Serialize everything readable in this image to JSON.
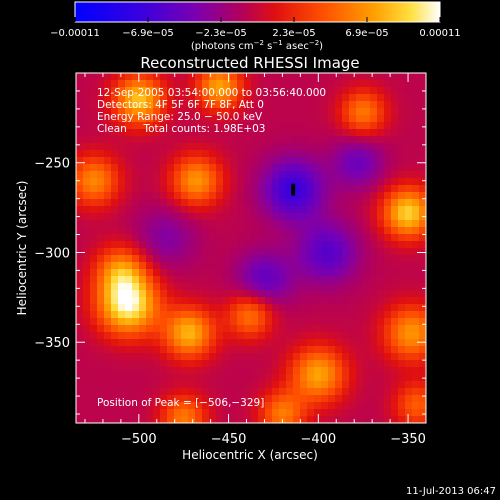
{
  "chart_data": {
    "type": "heatmap",
    "title": "Reconstructed RHESSI Image",
    "xlabel": "Heliocentric X (arcsec)",
    "ylabel": "Heliocentric Y (arcsec)",
    "xlim": [
      -535,
      -340
    ],
    "ylim": [
      -395,
      -200
    ],
    "x_ticks": [
      -500,
      -450,
      -400,
      -350
    ],
    "y_ticks": [
      -250,
      -300,
      -350
    ],
    "x_tick_labels": [
      "−500",
      "−450",
      "−400",
      "−350"
    ],
    "y_tick_labels": [
      "−250",
      "−300",
      "−350"
    ],
    "colorbar": {
      "min": -0.00011,
      "max": 0.00011,
      "tick_labels": [
        "−0.00011",
        "−6.9e−05",
        "−2.3e−05",
        "2.3e−05",
        "6.9e−05",
        "0.00011"
      ],
      "units_prefix": "(photons cm",
      "units_sup1": "−2",
      "units_mid1": " s",
      "units_sup2": "−1",
      "units_mid2": " asec",
      "units_sup3": "−2",
      "units_suffix": ")"
    },
    "annotations": [
      "12-Sep-2005 03:54:00.000 to 03:56:40.000",
      "Detectors: 4F 5F 6F 7F 8F, Att 0",
      "Energy Range: 25.0 − 50.0 keV",
      "Clean     Total counts: 1.98E+03"
    ],
    "peak_label": "Position of Peak = [−506,−329]",
    "peak": [
      -506,
      -329
    ],
    "negative_min_marker": [
      -414,
      -265
    ],
    "footer_date": "11-Jul-2013 06:47",
    "image_sources": [
      {
        "x": -506,
        "y": -329,
        "amp": 1.0,
        "sigma": 12
      },
      {
        "x": -510,
        "y": -310,
        "amp": 0.55,
        "sigma": 10
      },
      {
        "x": -500,
        "y": -215,
        "amp": 0.8,
        "sigma": 10
      },
      {
        "x": -455,
        "y": -208,
        "amp": 0.7,
        "sigma": 9
      },
      {
        "x": -525,
        "y": -260,
        "amp": 0.6,
        "sigma": 10
      },
      {
        "x": -468,
        "y": -260,
        "amp": 0.65,
        "sigma": 10
      },
      {
        "x": -350,
        "y": -278,
        "amp": 0.85,
        "sigma": 10
      },
      {
        "x": -375,
        "y": -222,
        "amp": 0.55,
        "sigma": 9
      },
      {
        "x": -472,
        "y": -345,
        "amp": 0.75,
        "sigma": 10
      },
      {
        "x": -438,
        "y": -335,
        "amp": 0.55,
        "sigma": 9
      },
      {
        "x": -400,
        "y": -368,
        "amp": 0.7,
        "sigma": 11
      },
      {
        "x": -348,
        "y": -345,
        "amp": 0.65,
        "sigma": 11
      },
      {
        "x": -420,
        "y": -390,
        "amp": 0.55,
        "sigma": 9
      },
      {
        "x": -475,
        "y": -392,
        "amp": 0.55,
        "sigma": 9
      },
      {
        "x": -345,
        "y": -385,
        "amp": 0.45,
        "sigma": 9
      },
      {
        "x": -414,
        "y": -265,
        "amp": -0.6,
        "sigma": 12
      },
      {
        "x": -395,
        "y": -300,
        "amp": -0.45,
        "sigma": 12
      },
      {
        "x": -430,
        "y": -315,
        "amp": -0.4,
        "sigma": 11
      },
      {
        "x": -378,
        "y": -250,
        "amp": -0.35,
        "sigma": 10
      },
      {
        "x": -485,
        "y": -292,
        "amp": -0.25,
        "sigma": 12
      }
    ]
  }
}
